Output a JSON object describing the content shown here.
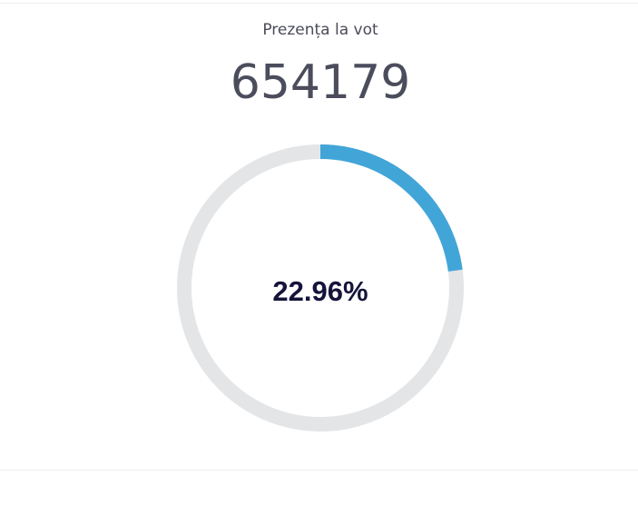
{
  "chart_data": {
    "type": "gauge",
    "title": "Prezența la vot",
    "total": 654179,
    "values": [
      22.96
    ],
    "value_labels": [
      "22.96%"
    ],
    "ylim": [
      0,
      100
    ],
    "color": "#42a5d8"
  }
}
